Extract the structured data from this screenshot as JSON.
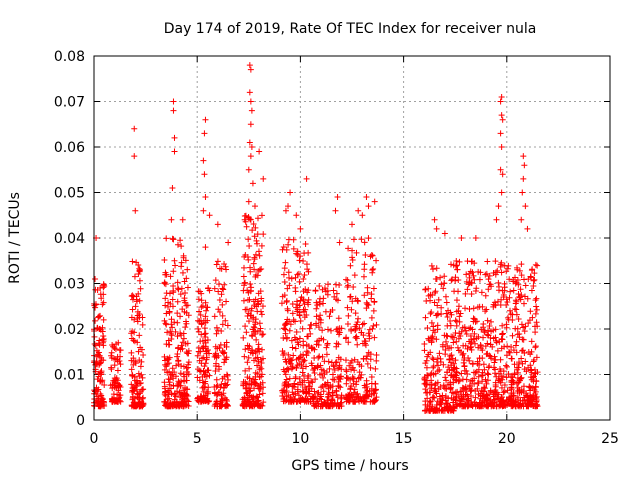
{
  "chart_data": {
    "type": "scatter",
    "title": "Day 174 of 2019, Rate Of TEC Index for receiver nula",
    "xlabel": "GPS time / hours",
    "ylabel": "ROTI / TECUs",
    "xlim": [
      0,
      25
    ],
    "ylim": [
      0,
      0.08
    ],
    "x_ticks": [
      "0",
      "5",
      "10",
      "15",
      "20",
      "25"
    ],
    "y_ticks": [
      "0",
      "0.01",
      "0.02",
      "0.03",
      "0.04",
      "0.05",
      "0.06",
      "0.07",
      "0.08"
    ],
    "grid": true,
    "marker": "+",
    "color": "#ff0000",
    "clusters": [
      {
        "x": [
          0.0,
          0.5
        ],
        "y": [
          0.003,
          0.03
        ],
        "n": 120
      },
      {
        "x": [
          0.8,
          1.3
        ],
        "y": [
          0.004,
          0.018
        ],
        "n": 80
      },
      {
        "x": [
          1.8,
          2.4
        ],
        "y": [
          0.003,
          0.035
        ],
        "n": 140
      },
      {
        "x": [
          3.4,
          4.6
        ],
        "y": [
          0.003,
          0.04
        ],
        "n": 260
      },
      {
        "x": [
          5.0,
          5.6
        ],
        "y": [
          0.004,
          0.03
        ],
        "n": 120
      },
      {
        "x": [
          5.8,
          6.5
        ],
        "y": [
          0.003,
          0.035
        ],
        "n": 110
      },
      {
        "x": [
          7.2,
          8.2
        ],
        "y": [
          0.003,
          0.045
        ],
        "n": 240
      },
      {
        "x": [
          9.1,
          10.6
        ],
        "y": [
          0.004,
          0.04
        ],
        "n": 260
      },
      {
        "x": [
          10.6,
          12.0
        ],
        "y": [
          0.003,
          0.03
        ],
        "n": 200
      },
      {
        "x": [
          12.2,
          13.7
        ],
        "y": [
          0.004,
          0.04
        ],
        "n": 220
      },
      {
        "x": [
          16.0,
          17.5
        ],
        "y": [
          0.002,
          0.035
        ],
        "n": 260
      },
      {
        "x": [
          17.5,
          19.0
        ],
        "y": [
          0.003,
          0.035
        ],
        "n": 260
      },
      {
        "x": [
          19.0,
          20.3
        ],
        "y": [
          0.003,
          0.035
        ],
        "n": 240
      },
      {
        "x": [
          20.3,
          21.5
        ],
        "y": [
          0.003,
          0.035
        ],
        "n": 220
      }
    ],
    "outliers": [
      {
        "x": 0.1,
        "y": 0.04
      },
      {
        "x": 0.05,
        "y": 0.031
      },
      {
        "x": 0.3,
        "y": 0.029
      },
      {
        "x": 1.95,
        "y": 0.064
      },
      {
        "x": 1.95,
        "y": 0.058
      },
      {
        "x": 2.0,
        "y": 0.046
      },
      {
        "x": 3.85,
        "y": 0.07
      },
      {
        "x": 3.85,
        "y": 0.068
      },
      {
        "x": 3.9,
        "y": 0.062
      },
      {
        "x": 3.9,
        "y": 0.059
      },
      {
        "x": 3.8,
        "y": 0.051
      },
      {
        "x": 3.75,
        "y": 0.044
      },
      {
        "x": 4.3,
        "y": 0.044
      },
      {
        "x": 5.4,
        "y": 0.066
      },
      {
        "x": 5.35,
        "y": 0.063
      },
      {
        "x": 5.3,
        "y": 0.057
      },
      {
        "x": 5.35,
        "y": 0.054
      },
      {
        "x": 5.4,
        "y": 0.049
      },
      {
        "x": 5.3,
        "y": 0.046
      },
      {
        "x": 5.6,
        "y": 0.045
      },
      {
        "x": 5.4,
        "y": 0.038
      },
      {
        "x": 6.0,
        "y": 0.043
      },
      {
        "x": 6.5,
        "y": 0.039
      },
      {
        "x": 7.55,
        "y": 0.078
      },
      {
        "x": 7.6,
        "y": 0.077
      },
      {
        "x": 7.55,
        "y": 0.072
      },
      {
        "x": 7.6,
        "y": 0.07
      },
      {
        "x": 7.65,
        "y": 0.068
      },
      {
        "x": 7.6,
        "y": 0.065
      },
      {
        "x": 7.55,
        "y": 0.061
      },
      {
        "x": 7.65,
        "y": 0.06
      },
      {
        "x": 7.6,
        "y": 0.058
      },
      {
        "x": 8.0,
        "y": 0.059
      },
      {
        "x": 7.5,
        "y": 0.055
      },
      {
        "x": 7.7,
        "y": 0.052
      },
      {
        "x": 8.2,
        "y": 0.053
      },
      {
        "x": 7.5,
        "y": 0.048
      },
      {
        "x": 7.8,
        "y": 0.047
      },
      {
        "x": 7.6,
        "y": 0.044
      },
      {
        "x": 9.5,
        "y": 0.05
      },
      {
        "x": 9.4,
        "y": 0.047
      },
      {
        "x": 9.3,
        "y": 0.046
      },
      {
        "x": 9.8,
        "y": 0.045
      },
      {
        "x": 10.3,
        "y": 0.053
      },
      {
        "x": 10.0,
        "y": 0.042
      },
      {
        "x": 11.8,
        "y": 0.049
      },
      {
        "x": 11.7,
        "y": 0.046
      },
      {
        "x": 11.9,
        "y": 0.039
      },
      {
        "x": 12.8,
        "y": 0.046
      },
      {
        "x": 13.2,
        "y": 0.049
      },
      {
        "x": 13.0,
        "y": 0.045
      },
      {
        "x": 13.3,
        "y": 0.047
      },
      {
        "x": 13.6,
        "y": 0.048
      },
      {
        "x": 12.5,
        "y": 0.043
      },
      {
        "x": 16.5,
        "y": 0.044
      },
      {
        "x": 16.6,
        "y": 0.042
      },
      {
        "x": 17.0,
        "y": 0.041
      },
      {
        "x": 17.8,
        "y": 0.04
      },
      {
        "x": 18.5,
        "y": 0.04
      },
      {
        "x": 19.75,
        "y": 0.071
      },
      {
        "x": 19.7,
        "y": 0.07
      },
      {
        "x": 19.75,
        "y": 0.067
      },
      {
        "x": 19.8,
        "y": 0.066
      },
      {
        "x": 19.7,
        "y": 0.063
      },
      {
        "x": 19.75,
        "y": 0.06
      },
      {
        "x": 19.7,
        "y": 0.055
      },
      {
        "x": 19.8,
        "y": 0.054
      },
      {
        "x": 19.75,
        "y": 0.05
      },
      {
        "x": 19.6,
        "y": 0.047
      },
      {
        "x": 19.5,
        "y": 0.044
      },
      {
        "x": 20.8,
        "y": 0.058
      },
      {
        "x": 20.85,
        "y": 0.056
      },
      {
        "x": 20.8,
        "y": 0.053
      },
      {
        "x": 20.75,
        "y": 0.05
      },
      {
        "x": 20.9,
        "y": 0.047
      },
      {
        "x": 20.7,
        "y": 0.044
      },
      {
        "x": 21.0,
        "y": 0.042
      }
    ]
  }
}
